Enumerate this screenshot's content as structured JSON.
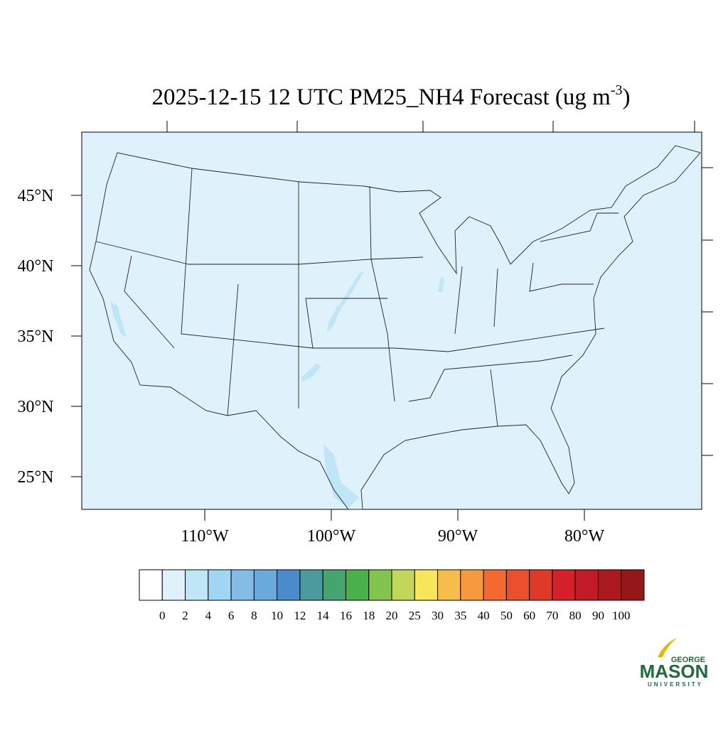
{
  "map": {
    "title": {
      "main": "2025-12-15 12 UTC PM25_NH4 Forecast (ug m",
      "superscript": "-3",
      "close": ")"
    },
    "lat_ticks": [
      {
        "value": 45,
        "label": "45°N"
      },
      {
        "value": 40,
        "label": "40°N"
      },
      {
        "value": 35,
        "label": "35°N"
      },
      {
        "value": 30,
        "label": "30°N"
      },
      {
        "value": 25,
        "label": "25°N"
      }
    ],
    "lon_ticks": [
      {
        "value": -110,
        "label": "110°W"
      },
      {
        "value": -100,
        "label": "100°W"
      },
      {
        "value": -90,
        "label": "90°W"
      },
      {
        "value": -80,
        "label": "80°W"
      }
    ],
    "colorbar": {
      "levels": [
        0,
        2,
        4,
        6,
        8,
        10,
        12,
        14,
        16,
        18,
        20,
        25,
        30,
        35,
        40,
        50,
        60,
        70,
        80,
        90,
        100
      ],
      "colors": [
        "#ffffff",
        "#dff1fa",
        "#bee6f7",
        "#9fd6f4",
        "#83bde6",
        "#69a9dc",
        "#4a8bc9",
        "#4a9a9e",
        "#46a56f",
        "#4ab14a",
        "#83c44e",
        "#c2d65a",
        "#f7e65a",
        "#f7bd4a",
        "#f79a3e",
        "#f26a2f",
        "#e9502b",
        "#de3a27",
        "#d42028",
        "#c01b26",
        "#aa1a21",
        "#951719"
      ]
    },
    "logo": {
      "top": "GEORGE",
      "main": "MASON",
      "bottom": "UNIVERSITY"
    }
  }
}
